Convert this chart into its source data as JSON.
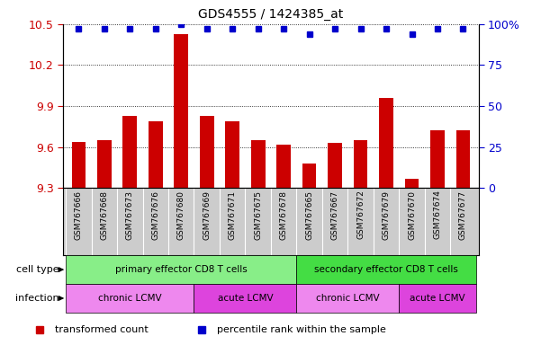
{
  "title": "GDS4555 / 1424385_at",
  "samples": [
    "GSM767666",
    "GSM767668",
    "GSM767673",
    "GSM767676",
    "GSM767680",
    "GSM767669",
    "GSM767671",
    "GSM767675",
    "GSM767678",
    "GSM767665",
    "GSM767667",
    "GSM767672",
    "GSM767679",
    "GSM767670",
    "GSM767674",
    "GSM767677"
  ],
  "bar_values": [
    9.64,
    9.65,
    9.83,
    9.79,
    10.43,
    9.83,
    9.79,
    9.65,
    9.62,
    9.48,
    9.63,
    9.65,
    9.96,
    9.37,
    9.72,
    9.72
  ],
  "dot_values": [
    97,
    97,
    97,
    97,
    100,
    97,
    97,
    97,
    97,
    94,
    97,
    97,
    97,
    94,
    97,
    97
  ],
  "ylim_left": [
    9.3,
    10.5
  ],
  "ylim_right": [
    0,
    100
  ],
  "yticks_left": [
    9.3,
    9.6,
    9.9,
    10.2,
    10.5
  ],
  "yticks_right": [
    0,
    25,
    50,
    75,
    100
  ],
  "bar_color": "#cc0000",
  "dot_color": "#0000cc",
  "bar_width": 0.55,
  "cell_type_labels": [
    {
      "text": "primary effector CD8 T cells",
      "start": 0,
      "end": 8,
      "color": "#88ee88"
    },
    {
      "text": "secondary effector CD8 T cells",
      "start": 9,
      "end": 15,
      "color": "#44dd44"
    }
  ],
  "infection_labels": [
    {
      "text": "chronic LCMV",
      "start": 0,
      "end": 4,
      "color": "#ee88ee"
    },
    {
      "text": "acute LCMV",
      "start": 5,
      "end": 8,
      "color": "#dd44dd"
    },
    {
      "text": "chronic LCMV",
      "start": 9,
      "end": 12,
      "color": "#ee88ee"
    },
    {
      "text": "acute LCMV",
      "start": 13,
      "end": 15,
      "color": "#dd44dd"
    }
  ],
  "tick_label_color_left": "#cc0000",
  "tick_label_color_right": "#0000cc",
  "xtick_bg_color": "#cccccc",
  "legend_items": [
    {
      "color": "#cc0000",
      "label": "transformed count"
    },
    {
      "color": "#0000cc",
      "label": "percentile rank within the sample"
    }
  ]
}
